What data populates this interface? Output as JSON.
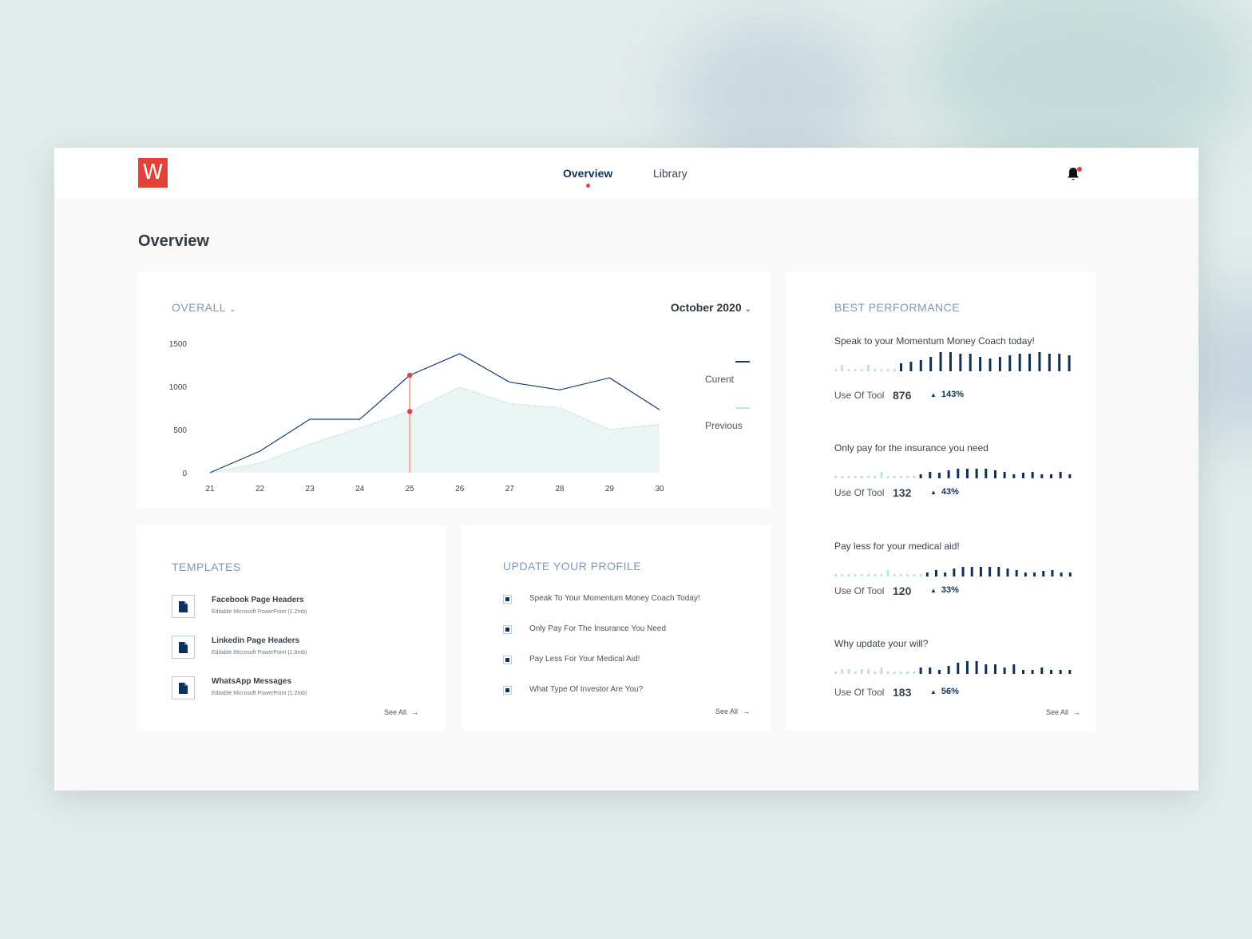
{
  "app": {
    "logo_letter": "W",
    "accent_color": "#e2423a",
    "primary_color": "#10305c"
  },
  "nav": {
    "items": [
      {
        "label": "Overview",
        "active": true
      },
      {
        "label": "Library",
        "active": false
      }
    ],
    "notification_icon": "bell-icon"
  },
  "page_title": "Overview",
  "overall": {
    "title": "OVERALL",
    "month": "October 2020",
    "legend": {
      "current": "Curent",
      "previous": "Previous"
    }
  },
  "chart_data": {
    "type": "line",
    "x": [
      21,
      22,
      23,
      24,
      25,
      26,
      27,
      28,
      29,
      30
    ],
    "yticks": [
      0,
      500,
      1000,
      1500
    ],
    "ylim": [
      0,
      1500
    ],
    "series": [
      {
        "name": "Curent",
        "values": [
          0,
          250,
          620,
          620,
          1130,
          1380,
          1050,
          960,
          1100,
          730
        ],
        "color": "#16396b"
      },
      {
        "name": "Previous",
        "values": [
          0,
          110,
          330,
          520,
          710,
          990,
          800,
          750,
          500,
          560
        ],
        "color": "#bfe0e6"
      }
    ],
    "highlight_x": 25
  },
  "templates": {
    "title": "TEMPLATES",
    "items": [
      {
        "name": "Facebook Page Headers",
        "sub": "Editable Microsoft PowerPoint (1.2mb)"
      },
      {
        "name": "Linkedin Page Headers",
        "sub": "Editable Microsoft PowerPoint (1.8mb)"
      },
      {
        "name": "WhatsApp Messages",
        "sub": "Editable Microsoft PowerPoint (1.2mb)"
      }
    ],
    "see_all": "See All"
  },
  "profile": {
    "title": "UPDATE YOUR PROFILE",
    "items": [
      "Speak To Your Momentum Money Coach Today!",
      "Only Pay For The Insurance You Need",
      "Pay Less For Your Medical Aid!",
      "What Type Of Investor Are You?"
    ],
    "see_all": "See All"
  },
  "best": {
    "title": "BEST PERFORMANCE",
    "stat_label": "Use Of Tool",
    "items": [
      {
        "title": "Speak to your Momentum Money Coach today!",
        "value": "876",
        "change": "143%"
      },
      {
        "title": "Only pay for the insurance you need",
        "value": "132",
        "change": "43%"
      },
      {
        "title": "Pay less for your medical aid!",
        "value": "120",
        "change": "33%"
      },
      {
        "title": "Why update your will?",
        "value": "183",
        "change": "56%"
      }
    ],
    "see_all": "See All"
  }
}
